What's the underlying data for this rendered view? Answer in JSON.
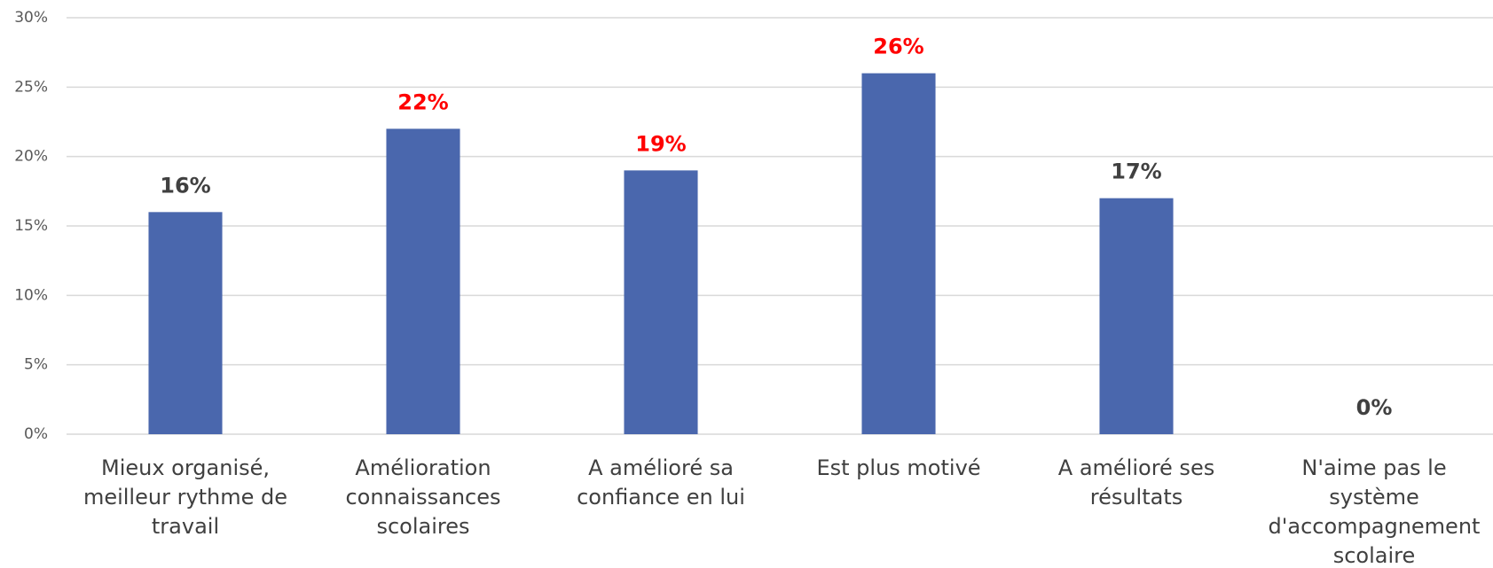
{
  "chart_data": {
    "type": "bar",
    "categories": [
      "Mieux organisé,\nmeilleur rythme de\ntravail",
      "Amélioration\nconnaissances\nscolaires",
      "A amélioré sa\nconfiance en lui",
      "Est plus motivé",
      "A amélioré ses\nrésultats",
      "N'aime pas le\nsystème\nd'accompagnement\nscolaire"
    ],
    "values": [
      16,
      22,
      19,
      26,
      17,
      0
    ],
    "value_labels": [
      "16%",
      "22%",
      "19%",
      "26%",
      "17%",
      "0%"
    ],
    "value_label_colors": [
      "#404040",
      "#ff0000",
      "#ff0000",
      "#ff0000",
      "#404040",
      "#404040"
    ],
    "color": "#4a67ad",
    "ylim": [
      0,
      30
    ],
    "yticks": [
      {
        "value": 0,
        "label": "0%"
      },
      {
        "value": 5,
        "label": "5%"
      },
      {
        "value": 10,
        "label": "10%"
      },
      {
        "value": 15,
        "label": "15%"
      },
      {
        "value": 20,
        "label": "20%"
      },
      {
        "value": 25,
        "label": "25%"
      },
      {
        "value": 30,
        "label": "30%"
      }
    ],
    "grid": true
  }
}
